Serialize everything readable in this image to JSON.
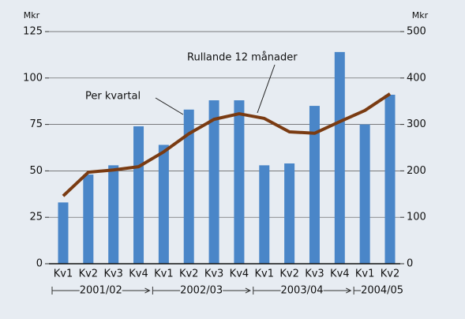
{
  "chart_data": {
    "type": "bar_line",
    "y_label": "Mkr",
    "y2_label": "Mkr",
    "categories": [
      "Kv1",
      "Kv2",
      "Kv3",
      "Kv4",
      "Kv1",
      "Kv2",
      "Kv3",
      "Kv4",
      "Kv1",
      "Kv2",
      "Kv3",
      "Kv4",
      "Kv1",
      "Kv2"
    ],
    "groups": [
      "2001/02",
      "2002/03",
      "2003/04",
      "2004/05"
    ],
    "series": [
      {
        "name": "Per kvartal",
        "type": "bar",
        "color": "#4a86c8",
        "values": [
          33,
          48,
          53,
          74,
          64,
          83,
          88,
          88,
          53,
          54,
          85,
          114,
          75,
          91
        ]
      },
      {
        "name": "Rullande 12 månader",
        "type": "line",
        "axis": "y2",
        "color": "#7a3b12",
        "values": [
          146,
          197,
          202,
          209,
          241,
          280,
          311,
          323,
          313,
          284,
          281,
          306,
          330,
          366
        ]
      }
    ],
    "ylim": [
      0,
      125
    ],
    "yticks": [
      0,
      25,
      50,
      75,
      100,
      125
    ],
    "y2lim": [
      0,
      500
    ],
    "y2ticks": [
      0,
      100,
      200,
      300,
      400,
      500
    ],
    "grid": true
  }
}
